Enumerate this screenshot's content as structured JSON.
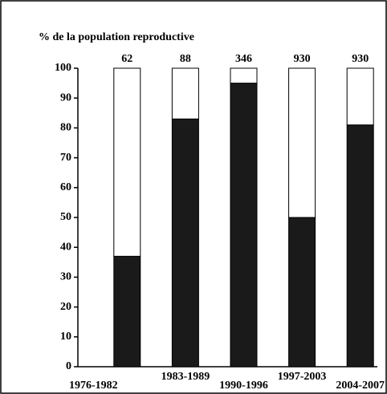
{
  "chart_data": {
    "type": "stacked_bar",
    "ylabel": "% de la population reproductive",
    "categories": [
      "1976-1982",
      "1983-1989",
      "1990-1996",
      "1997-2003",
      "2004-2007"
    ],
    "series": [
      {
        "color": "#1a1a1a",
        "values": [
          37,
          83,
          95,
          50,
          81
        ]
      },
      {
        "color": "#ffffff",
        "values": [
          63,
          17,
          5,
          50,
          19
        ]
      }
    ],
    "bar_labels": [
      62,
      88,
      346,
      930,
      930
    ],
    "ylim": [
      0,
      100
    ],
    "yticks": [
      0,
      10,
      20,
      30,
      40,
      50,
      60,
      70,
      80,
      90,
      100
    ]
  }
}
